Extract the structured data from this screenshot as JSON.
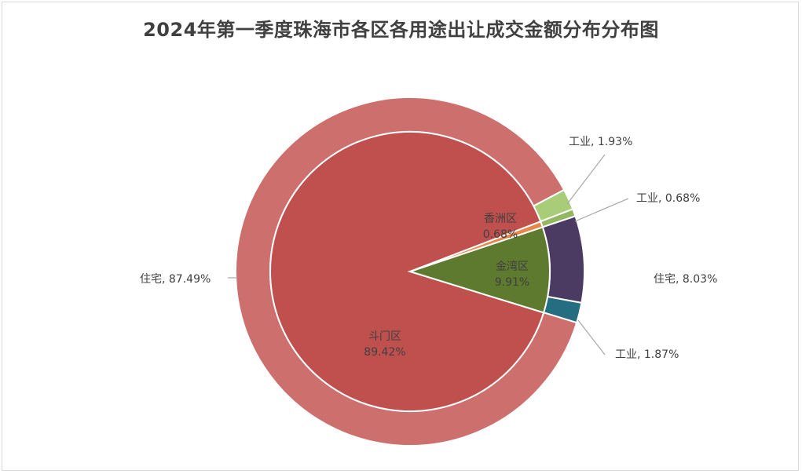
{
  "chart_data": {
    "type": "pie",
    "title": "2024年第一季度珠海市各区各用途出让成交金额分布分布图",
    "inner": [
      {
        "name": "斗门区",
        "value": 89.42,
        "label": "89.42%",
        "color": "#c0504d"
      },
      {
        "name": "金湾区",
        "value": 9.91,
        "label": "9.91%",
        "color": "#5e7a2e"
      },
      {
        "name": "香洲区",
        "value": 0.68,
        "label": "0.68%",
        "color": "#e8864a"
      }
    ],
    "outer": [
      {
        "name": "住宅",
        "district": "斗门区",
        "value": 87.49,
        "label": "87.49%",
        "color": "#cd6f6d"
      },
      {
        "name": "工业",
        "district": "斗门区",
        "value": 1.93,
        "label": "1.93%",
        "color": "#a8cc78"
      },
      {
        "name": "工业",
        "district": "香洲区",
        "value": 0.68,
        "label": "0.68%",
        "color": "#93b760"
      },
      {
        "name": "住宅",
        "district": "金湾区",
        "value": 8.03,
        "label": "8.03%",
        "color": "#4b3b63"
      },
      {
        "name": "工业",
        "district": "金湾区",
        "value": 1.87,
        "label": "1.87%",
        "color": "#256d80"
      }
    ]
  }
}
